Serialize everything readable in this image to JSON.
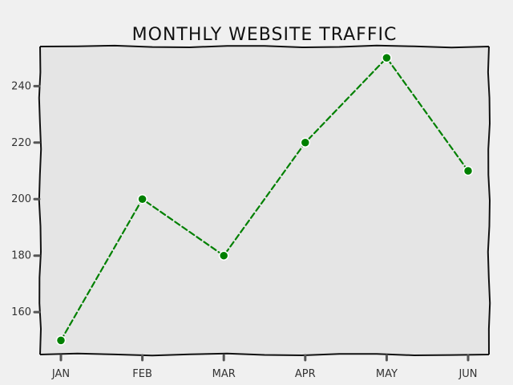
{
  "chart_data": {
    "type": "line",
    "title": "MONTHLY WEBSITE TRAFFIC",
    "xlabel": "",
    "ylabel": "",
    "categories": [
      "JAN",
      "FEB",
      "MAR",
      "APR",
      "MAY",
      "JUN"
    ],
    "series": [
      {
        "values": [
          150,
          200,
          180,
          220,
          250,
          210
        ],
        "color": "#008000"
      }
    ],
    "ylim": [
      145,
      254
    ],
    "yticks": [
      160,
      180,
      200,
      220,
      240
    ],
    "grid": false,
    "line_style": "dashed",
    "marker": "circle",
    "style": "xkcd"
  },
  "colors": {
    "page_background": "#f0f0f0",
    "plot_background": "#e5e5e5",
    "axis": "#111111"
  }
}
